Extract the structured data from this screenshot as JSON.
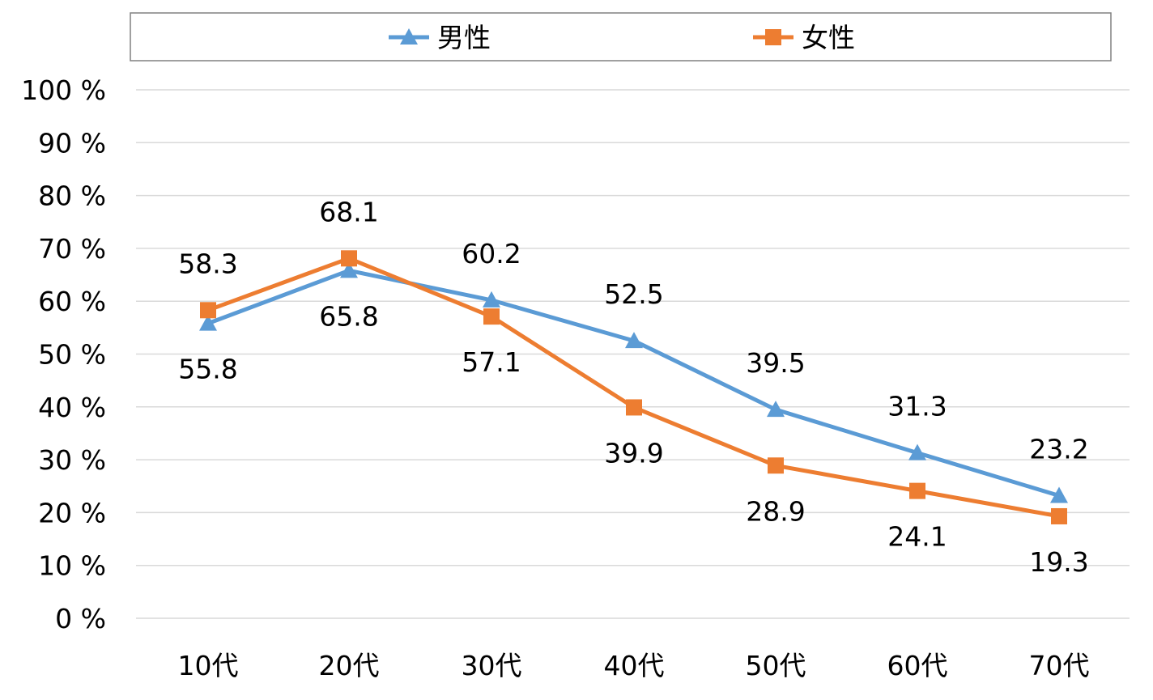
{
  "chart_data": {
    "type": "line",
    "categories": [
      "10代",
      "20代",
      "30代",
      "40代",
      "50代",
      "60代",
      "70代"
    ],
    "series": [
      {
        "name": "男性",
        "values": [
          55.8,
          65.8,
          60.2,
          52.5,
          39.5,
          31.3,
          23.2
        ],
        "color": "#5B9BD5",
        "marker": "triangle",
        "labels": [
          "55.8",
          "65.8",
          "60.2",
          "52.5",
          "39.5",
          "31.3",
          "23.2"
        ],
        "label_side": [
          "below",
          "below",
          "above",
          "above",
          "above",
          "above",
          "above"
        ]
      },
      {
        "name": "女性",
        "values": [
          58.3,
          68.1,
          57.1,
          39.9,
          28.9,
          24.1,
          19.3
        ],
        "color": "#ED7D31",
        "marker": "square",
        "labels": [
          "58.3",
          "68.1",
          "57.1",
          "39.9",
          "28.9",
          "24.1",
          "19.3"
        ],
        "label_side": [
          "above",
          "above",
          "below",
          "below",
          "below",
          "below",
          "below"
        ]
      }
    ],
    "y_ticks": [
      "0 %",
      "10 %",
      "20 %",
      "30 %",
      "40 %",
      "50 %",
      "60 %",
      "70 %",
      "80 %",
      "90 %",
      "100 %"
    ],
    "ylim": [
      0,
      100
    ],
    "grid": true,
    "legend_position": "top"
  }
}
